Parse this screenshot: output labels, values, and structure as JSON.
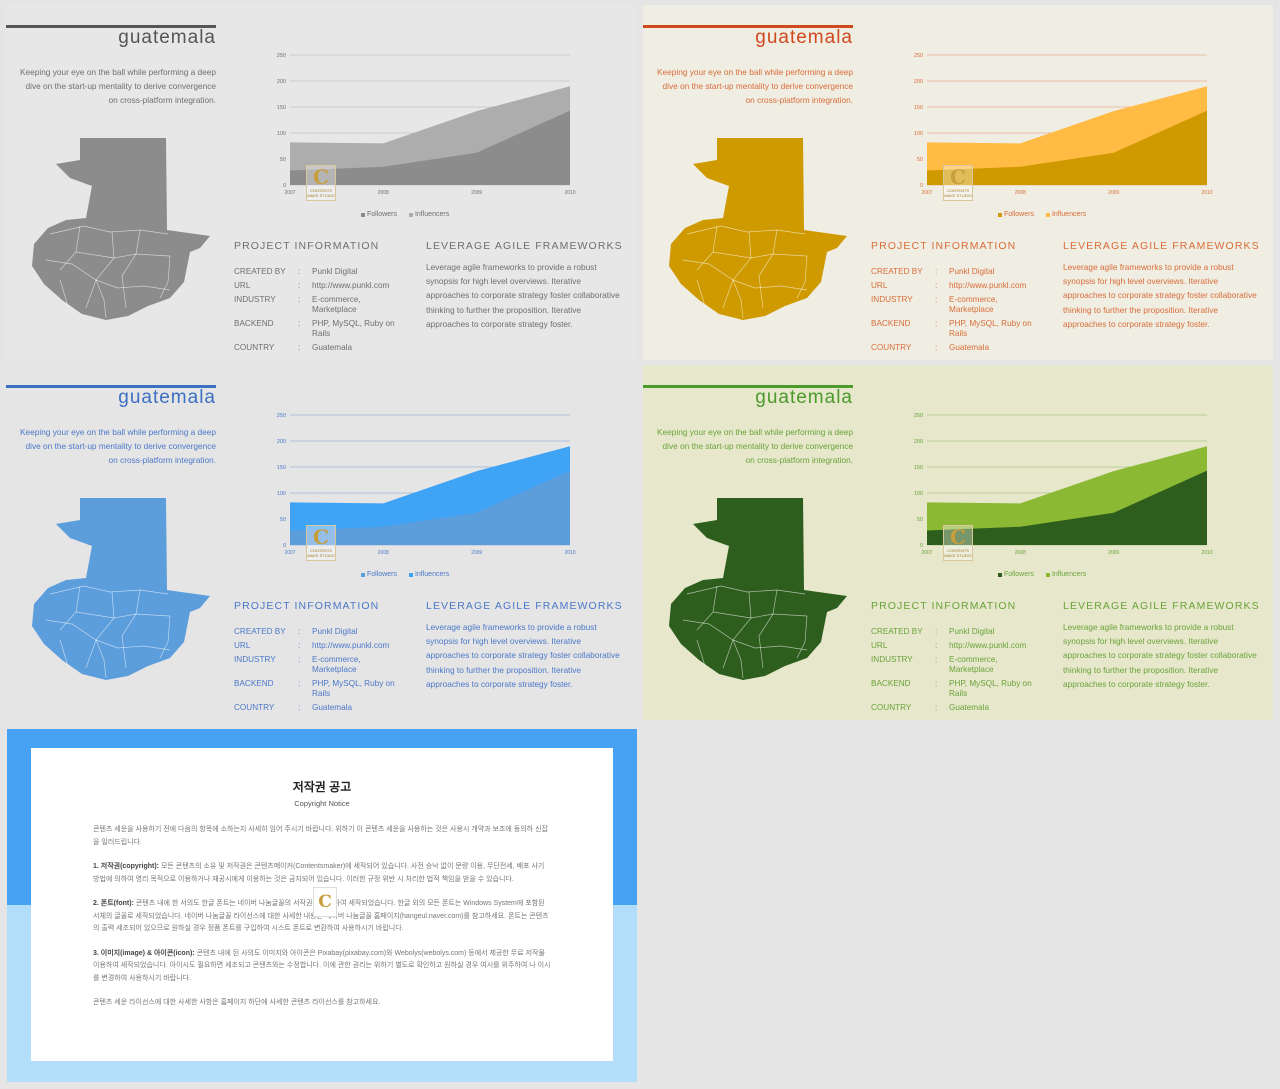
{
  "common": {
    "title": "guatemala",
    "description": "Keeping your eye on the ball while performing a deep dive on the start-up mentality to derive convergence on cross-platform integration.",
    "project_heading": "PROJECT INFORMATION",
    "leverage_heading": "LEVERAGE AGILE FRAMEWORKS",
    "leverage_text": "Leverage agile frameworks to provide a robust synopsis for high level overviews. Iterative approaches to corporate strategy foster collaborative thinking to further the proposition. Iterative approaches to corporate strategy foster.",
    "info": [
      {
        "key": "CREATED BY",
        "value": "Punkl Digital"
      },
      {
        "key": "URL",
        "value": "http://www.punkl.com"
      },
      {
        "key": "INDUSTRY",
        "value": "E-commerce, Marketplace"
      },
      {
        "key": "BACKEND",
        "value": "PHP, MySQL, Ruby on Rails"
      },
      {
        "key": "COUNTRY",
        "value": "Guatemala"
      }
    ],
    "colon": ":",
    "watermark": {
      "letter": "C",
      "text": "CONTENTS MAKE STUDIO"
    }
  },
  "themes": [
    {
      "name": "gray",
      "followers_color": "#8c8c8c",
      "influencers_color": "#adadad",
      "map_color": "#8c8c8c",
      "grid_color": "#9a9a9a",
      "text_color": "#6f6f6f"
    },
    {
      "name": "orange",
      "followers_color": "#cf9a00",
      "influencers_color": "#ffbb44",
      "map_color": "#cf9a00",
      "grid_color": "#d86d3a",
      "text_color": "#d86d3a"
    },
    {
      "name": "blue",
      "followers_color": "#5c9ddc",
      "influencers_color": "#3fa3f6",
      "map_color": "#5c9ddc",
      "grid_color": "#4a78c8",
      "text_color": "#4a78c8"
    },
    {
      "name": "green",
      "followers_color": "#2e5e1e",
      "influencers_color": "#8cb933",
      "map_color": "#2e5e1e",
      "grid_color": "#6aa33a",
      "text_color": "#6aa33a"
    }
  ],
  "chart_data": {
    "type": "area",
    "categories": [
      "2007",
      "2008",
      "2009",
      "2010"
    ],
    "ylim": [
      0,
      250
    ],
    "yticks": [
      0,
      50,
      100,
      150,
      200,
      250
    ],
    "series": [
      {
        "name": "Followers",
        "values": [
          28,
          35,
          62,
          143
        ]
      },
      {
        "name": "Influencers",
        "values": [
          82,
          80,
          142,
          190
        ]
      }
    ]
  },
  "copyright": {
    "title": "저작권 공고",
    "subtitle": "Copyright Notice",
    "intro": "콘텐츠 세운을 사용하기 전에 다음의 항목에 소하는지 사세히 임어 주시기 바랍니다. 위하기 이 콘텐츠 세운을 사용하는 것은 사용시 개약과 보조에 동의하 신잡을 일러드립니다.",
    "p1_label": "1. 저작권(copyright):",
    "p1": "모든 콘텐츠의 소유 및 저작권은 콘텐츠메이커(Contentsmaker)에 세작되어 있습니다. 사전 승낙 없이 문량 이용, 무단전세, 배포 사기 방법에 의하여 영리 목적으로 이용하거나 재공시에게 이용하는 것은 금지되어 있습니다. 이러한 규정 위반 시 처리한 법적 책임을 받을 수 있습니다.",
    "p2_label": "2. 폰트(font):",
    "p2": "콘텐츠 내에 한 서의도 한글 폰트는 네이버 나눔글꼴의 서작권을 보호하여 세작되었습니다. 한글 외의 모든 폰트는 Windows System에 포함된 서체의 글꼴로 세작되었습니다. 네이버 나눔글꼴 라이선스에 대한 사세한 내용은 네이버 나눔글꼴 홈페이지(hangeul.naver.com)를 참고하세요. 폰트는 콘텐츠의 출력 세조되어 있으므로 원하실 경우 정품 폰트를 구입하여 시스트 폰트로 변환하여 사용하시기 바랍니다.",
    "p3_label": "3. 이미지(image) & 아이콘(icon):",
    "p3": "콘텐츠 내에 된 사의도 이미지와 아이콘은 Pixabay(pixabay.com)와 Webolys(webolys.com) 등에서 제공한 무료 저작물 이용하여 세작되었습니다. 아이시도 필요하면 세조되고 콘텐츠와는 수정합니다. 이에 관한 권리는 위하기 별도로 확인하고 원하실 경우 여시를 위주하여 나 이시를 변경하여 사용하시기 바랍니다.",
    "outro": "콘텐츠 세운 라이선스에 대한 사세한 사항은 홈페이지 하단에 사세한 콘텐츠 라이선스를 참고하세요."
  }
}
